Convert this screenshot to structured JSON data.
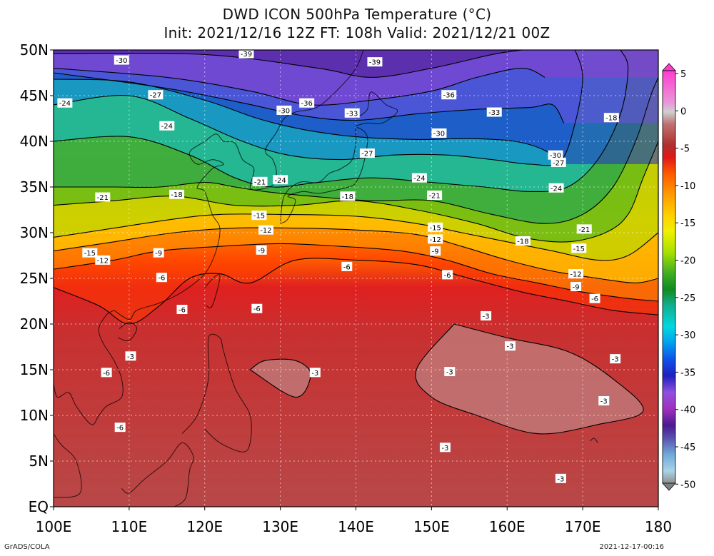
{
  "title_line1": "DWD ICON 500hPa Temperature (°C)",
  "title_line2": "Init: 2021/12/16 12Z  FT: 108h  Valid: 2021/12/21 00Z",
  "footer_left": "GrADS/COLA",
  "footer_right": "2021-12-17-00:16",
  "lat_labels": [
    "50N",
    "45N",
    "40N",
    "35N",
    "30N",
    "25N",
    "20N",
    "15N",
    "10N",
    "5N",
    "EQ"
  ],
  "lon_labels": [
    "100E",
    "110E",
    "120E",
    "130E",
    "140E",
    "150E",
    "160E",
    "170E",
    "180"
  ],
  "colorbar": {
    "labels": [
      "5",
      "0",
      "-5",
      "-10",
      "-15",
      "-20",
      "-25",
      "-30",
      "-35",
      "-40",
      "-45",
      "-50"
    ],
    "colors": [
      "#ff3cd0",
      "#e89ad8",
      "#cfcfcf",
      "#bf6a6a",
      "#b03030",
      "#e01818",
      "#ff5a00",
      "#ff9a00",
      "#ffd000",
      "#f4f000",
      "#b8e000",
      "#58c020",
      "#109020",
      "#10b090",
      "#00d8e0",
      "#00a0f0",
      "#1050e8",
      "#2020c0",
      "#8048e0",
      "#a030c0",
      "#5a1a9a",
      "#5a50b0",
      "#5080c8",
      "#70b8e0",
      "#9ad0e8",
      "#a0a0a0"
    ],
    "max_color": "#ff3cd0",
    "min_color": "#808080"
  },
  "chart_data": {
    "type": "contour-map",
    "title": "DWD ICON 500hPa Temperature (°C)",
    "subtitle": "Init: 2021/12/16 12Z  FT: 108h  Valid: 2021/12/21 00Z",
    "lon_range": [
      100,
      180
    ],
    "lat_range": [
      0,
      50
    ],
    "contour_interval": 3,
    "color_range": [
      -50,
      5
    ],
    "isotherms": [
      {
        "value": -39,
        "points": [
          [
            100,
            49.6
          ],
          [
            120,
            49.5
          ],
          [
            135,
            48
          ],
          [
            142,
            47
          ],
          [
            150,
            48
          ],
          [
            158,
            49.5
          ],
          [
            162,
            50
          ]
        ]
      },
      {
        "value": -36,
        "points": [
          [
            100,
            48
          ],
          [
            115,
            47
          ],
          [
            126,
            45.5
          ],
          [
            134,
            44
          ],
          [
            142,
            44.5
          ],
          [
            150,
            45.5
          ],
          [
            156,
            47
          ],
          [
            162,
            48
          ],
          [
            165,
            47
          ]
        ]
      },
      {
        "value": -33,
        "points": [
          [
            100,
            47.5
          ],
          [
            115,
            45.8
          ],
          [
            125,
            44.2
          ],
          [
            133,
            42.8
          ],
          [
            140,
            42.3
          ],
          [
            148,
            43
          ],
          [
            156,
            43.5
          ],
          [
            163,
            43.7
          ],
          [
            166,
            44
          ],
          [
            167.5,
            42
          ]
        ]
      },
      {
        "value": -30,
        "points": [
          [
            100,
            46.8
          ],
          [
            110,
            46.5
          ],
          [
            120,
            44.5
          ],
          [
            127,
            42.5
          ],
          [
            133,
            41.3
          ],
          [
            140,
            40.5
          ],
          [
            148,
            40.2
          ],
          [
            155,
            40.3
          ],
          [
            161,
            40
          ],
          [
            165,
            39
          ],
          [
            167,
            37.5
          ]
        ]
      },
      {
        "value": -27,
        "points": [
          [
            100,
            44
          ],
          [
            110,
            45
          ],
          [
            118,
            42.5
          ],
          [
            125,
            40
          ],
          [
            131,
            38.5
          ],
          [
            138,
            38
          ],
          [
            145,
            38.5
          ],
          [
            152,
            38.5
          ],
          [
            158,
            38
          ],
          [
            163,
            37.5
          ],
          [
            167,
            37.8
          ],
          [
            169,
            42
          ],
          [
            170,
            47
          ],
          [
            169,
            50
          ]
        ]
      },
      {
        "value": -24,
        "points": [
          [
            100,
            40
          ],
          [
            110,
            40.5
          ],
          [
            118,
            38.5
          ],
          [
            124,
            36
          ],
          [
            129,
            35
          ],
          [
            135,
            35.5
          ],
          [
            142,
            36
          ],
          [
            150,
            35.5
          ],
          [
            157,
            35
          ],
          [
            163,
            34.5
          ],
          [
            168,
            35
          ],
          [
            172,
            38
          ],
          [
            175,
            43
          ],
          [
            176,
            48
          ],
          [
            175,
            50
          ]
        ]
      },
      {
        "value": -21,
        "points": [
          [
            100,
            35
          ],
          [
            108,
            35
          ],
          [
            114,
            35
          ],
          [
            120,
            35.5
          ],
          [
            124,
            35
          ],
          [
            128,
            34.5
          ],
          [
            134,
            34
          ],
          [
            142,
            33.5
          ],
          [
            150,
            33.5
          ],
          [
            158,
            32
          ],
          [
            165,
            31
          ],
          [
            170,
            32
          ],
          [
            174,
            35
          ],
          [
            177,
            40
          ],
          [
            179,
            45
          ],
          [
            180,
            47
          ]
        ]
      },
      {
        "value": -18,
        "points": [
          [
            100,
            33
          ],
          [
            108,
            33.5
          ],
          [
            116,
            34
          ],
          [
            124,
            33
          ],
          [
            132,
            33
          ],
          [
            140,
            33.5
          ],
          [
            148,
            32.5
          ],
          [
            156,
            31
          ],
          [
            162,
            29.5
          ],
          [
            168,
            29
          ],
          [
            173,
            30
          ],
          [
            176,
            32
          ],
          [
            178,
            36
          ],
          [
            180,
            40
          ]
        ]
      },
      {
        "value": -15,
        "points": [
          [
            100,
            29.5
          ],
          [
            108,
            30.5
          ],
          [
            116,
            31.5
          ],
          [
            122,
            32
          ],
          [
            130,
            32
          ],
          [
            140,
            31.8
          ],
          [
            148,
            31
          ],
          [
            154,
            30
          ],
          [
            160,
            29
          ],
          [
            166,
            28
          ],
          [
            172,
            27
          ],
          [
            176,
            27.5
          ],
          [
            180,
            30
          ]
        ]
      },
      {
        "value": -12,
        "points": [
          [
            100,
            28
          ],
          [
            108,
            29
          ],
          [
            116,
            30
          ],
          [
            124,
            30.5
          ],
          [
            132,
            30.5
          ],
          [
            140,
            30.3
          ],
          [
            148,
            29.8
          ],
          [
            154,
            28.5
          ],
          [
            160,
            27
          ],
          [
            166,
            25.8
          ],
          [
            172,
            25
          ],
          [
            177,
            24.5
          ],
          [
            180,
            25
          ]
        ]
      },
      {
        "value": -9,
        "points": [
          [
            100,
            26
          ],
          [
            108,
            27
          ],
          [
            114,
            28
          ],
          [
            122,
            28.5
          ],
          [
            130,
            28.8
          ],
          [
            138,
            28.5
          ],
          [
            146,
            28
          ],
          [
            152,
            27
          ],
          [
            158,
            25.5
          ],
          [
            164,
            24.5
          ],
          [
            170,
            23.5
          ],
          [
            176,
            22.8
          ],
          [
            180,
            22.5
          ]
        ]
      },
      {
        "value": -6,
        "points": [
          [
            100,
            24
          ],
          [
            106,
            22
          ],
          [
            110,
            20
          ],
          [
            114,
            22
          ],
          [
            118,
            25
          ],
          [
            122,
            25.5
          ],
          [
            126,
            24.5
          ],
          [
            132,
            27
          ],
          [
            140,
            27
          ],
          [
            148,
            26.5
          ],
          [
            155,
            25
          ],
          [
            162,
            23.5
          ],
          [
            168,
            22.5
          ],
          [
            174,
            21.5
          ],
          [
            180,
            21
          ]
        ]
      },
      {
        "value": -3,
        "points": [
          [
            126,
            15
          ],
          [
            132,
            12
          ],
          [
            134,
            14.5
          ],
          [
            132,
            16
          ],
          [
            128,
            16
          ]
        ],
        "closed": true
      },
      {
        "value": -3,
        "points": [
          [
            153,
            20
          ],
          [
            160,
            18.5
          ],
          [
            168,
            17
          ],
          [
            174,
            14
          ],
          [
            178,
            10.5
          ],
          [
            172,
            9
          ],
          [
            164,
            8
          ],
          [
            156,
            10
          ],
          [
            150,
            12
          ],
          [
            148,
            15
          ]
        ],
        "closed": true
      }
    ],
    "contour_labels": [
      {
        "text": "-39",
        "lon": 125.5,
        "lat": 49.6
      },
      {
        "text": "-39",
        "lon": 142.5,
        "lat": 48.7
      },
      {
        "text": "-30",
        "lon": 109,
        "lat": 48.9
      },
      {
        "text": "-27",
        "lon": 113.5,
        "lat": 45.1
      },
      {
        "text": "-24",
        "lon": 101.5,
        "lat": 44.2
      },
      {
        "text": "-36",
        "lon": 133.5,
        "lat": 44.2
      },
      {
        "text": "-36",
        "lon": 152.3,
        "lat": 45.1
      },
      {
        "text": "-30",
        "lon": 130.5,
        "lat": 43.4
      },
      {
        "text": "-33",
        "lon": 139.5,
        "lat": 43.1
      },
      {
        "text": "-33",
        "lon": 158.3,
        "lat": 43.2
      },
      {
        "text": "-24",
        "lon": 115,
        "lat": 41.7
      },
      {
        "text": "-30",
        "lon": 151,
        "lat": 40.9
      },
      {
        "text": "-27",
        "lon": 141.5,
        "lat": 38.7
      },
      {
        "text": "-30",
        "lon": 166.4,
        "lat": 38.5
      },
      {
        "text": "-27",
        "lon": 166.8,
        "lat": 37.7
      },
      {
        "text": "-18",
        "lon": 173.8,
        "lat": 42.6
      },
      {
        "text": "-21",
        "lon": 127.3,
        "lat": 35.6
      },
      {
        "text": "-24",
        "lon": 130,
        "lat": 35.8
      },
      {
        "text": "-24",
        "lon": 148.4,
        "lat": 36
      },
      {
        "text": "-24",
        "lon": 166.5,
        "lat": 34.9
      },
      {
        "text": "-21",
        "lon": 106.5,
        "lat": 33.9
      },
      {
        "text": "-18",
        "lon": 116.3,
        "lat": 34.2
      },
      {
        "text": "-18",
        "lon": 138.9,
        "lat": 34
      },
      {
        "text": "-21",
        "lon": 150.4,
        "lat": 34.1
      },
      {
        "text": "-15",
        "lon": 127.2,
        "lat": 31.9
      },
      {
        "text": "-12",
        "lon": 128.1,
        "lat": 30.3
      },
      {
        "text": "-15",
        "lon": 150.5,
        "lat": 30.6
      },
      {
        "text": "-12",
        "lon": 150.5,
        "lat": 29.3
      },
      {
        "text": "-9",
        "lon": 150.5,
        "lat": 28
      },
      {
        "text": "-18",
        "lon": 162.1,
        "lat": 29.1
      },
      {
        "text": "-21",
        "lon": 170.2,
        "lat": 30.4
      },
      {
        "text": "-15",
        "lon": 104.8,
        "lat": 27.8
      },
      {
        "text": "-12",
        "lon": 106.5,
        "lat": 27
      },
      {
        "text": "-9",
        "lon": 113.9,
        "lat": 27.8
      },
      {
        "text": "-9",
        "lon": 127.5,
        "lat": 28.1
      },
      {
        "text": "-15",
        "lon": 169.5,
        "lat": 28.3
      },
      {
        "text": "-6",
        "lon": 138.8,
        "lat": 26.3
      },
      {
        "text": "-6",
        "lon": 114.3,
        "lat": 25.1
      },
      {
        "text": "-6",
        "lon": 152.1,
        "lat": 25.4
      },
      {
        "text": "-12",
        "lon": 169.1,
        "lat": 25.5
      },
      {
        "text": "-9",
        "lon": 169.1,
        "lat": 24.1
      },
      {
        "text": "-6",
        "lon": 171.6,
        "lat": 22.8
      },
      {
        "text": "-6",
        "lon": 117,
        "lat": 21.6
      },
      {
        "text": "-6",
        "lon": 126.9,
        "lat": 21.7
      },
      {
        "text": "-3",
        "lon": 157.2,
        "lat": 20.9
      },
      {
        "text": "-3",
        "lon": 160.4,
        "lat": 17.6
      },
      {
        "text": "-3",
        "lon": 110.2,
        "lat": 16.5
      },
      {
        "text": "-3",
        "lon": 174.3,
        "lat": 16.2
      },
      {
        "text": "-6",
        "lon": 107,
        "lat": 14.7
      },
      {
        "text": "-3",
        "lon": 134.6,
        "lat": 14.7
      },
      {
        "text": "-3",
        "lon": 152.4,
        "lat": 14.8
      },
      {
        "text": "-3",
        "lon": 172.8,
        "lat": 11.6
      },
      {
        "text": "-6",
        "lon": 108.8,
        "lat": 8.7
      },
      {
        "text": "-3",
        "lon": 151.8,
        "lat": 6.5
      },
      {
        "text": "-3",
        "lon": 167.1,
        "lat": 3.1
      }
    ]
  }
}
